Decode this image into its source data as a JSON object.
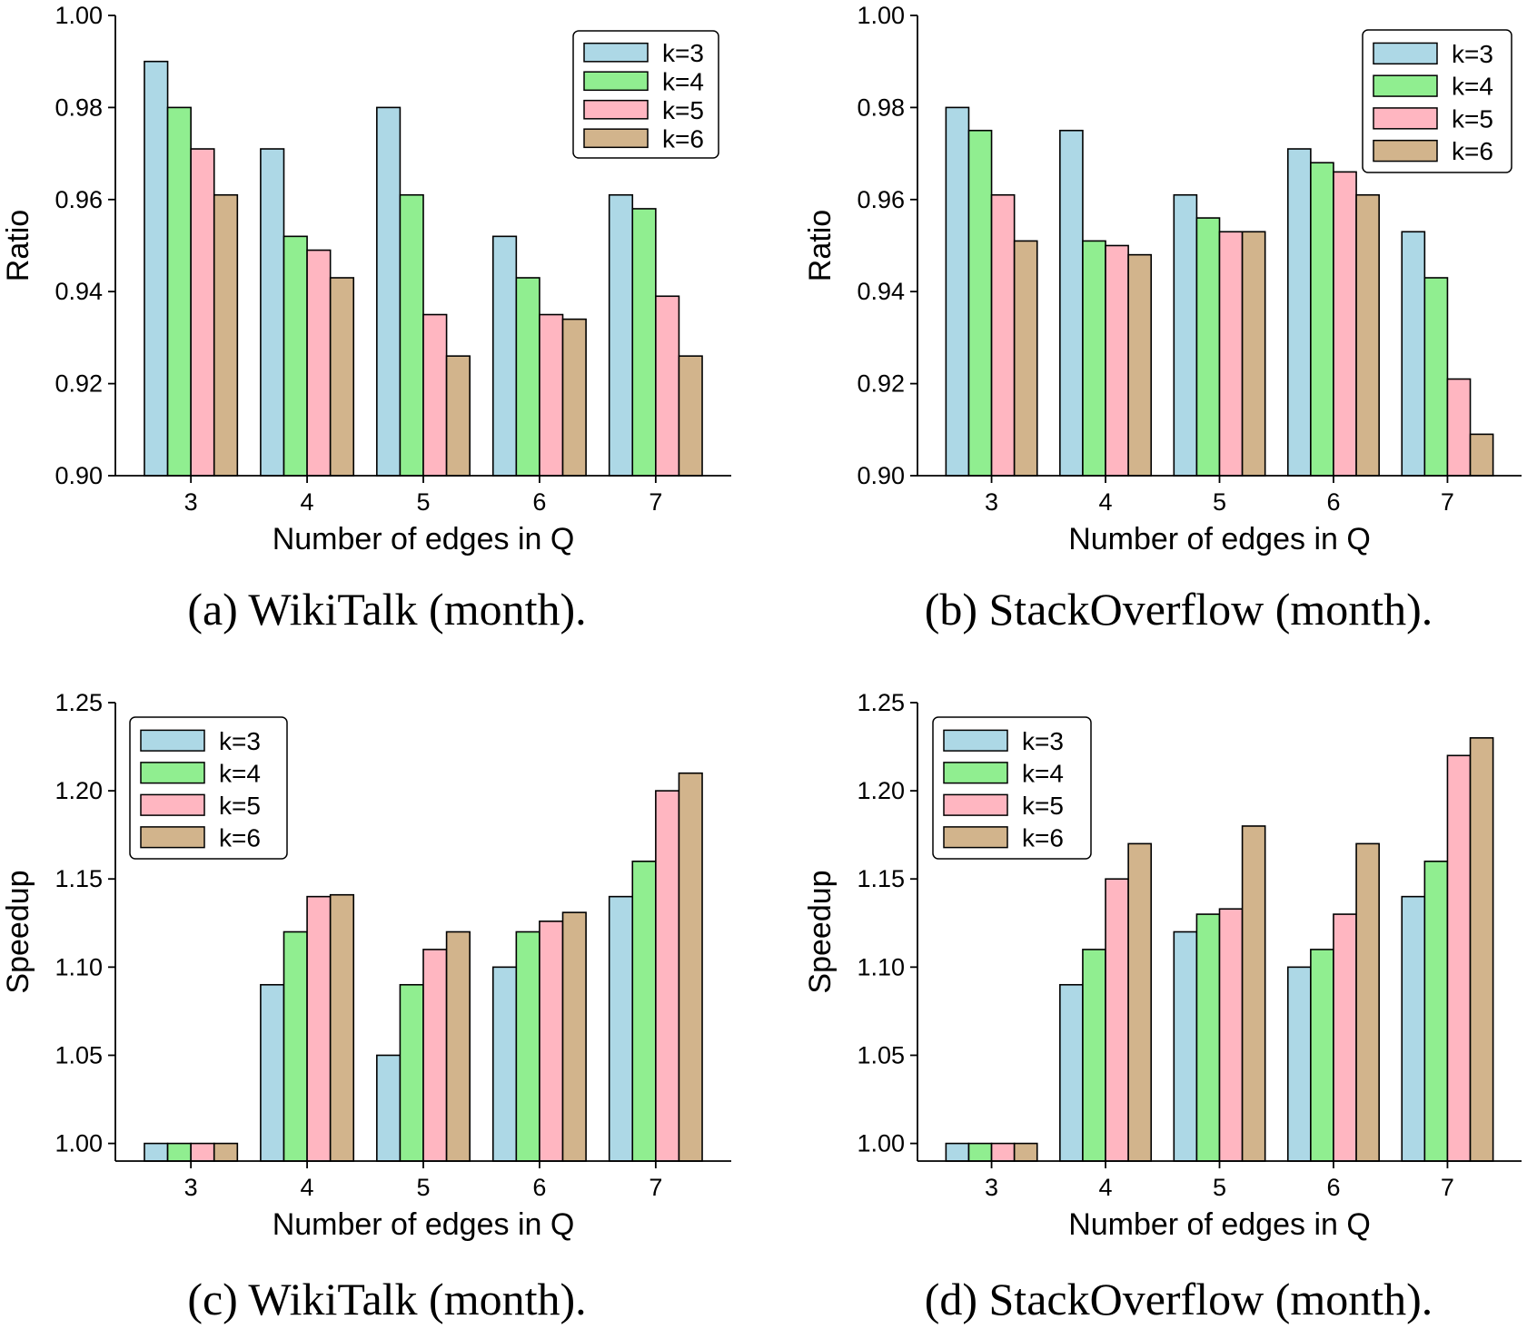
{
  "chart_data": [
    {
      "type": "bar",
      "caption": "(a) WikiTalk (month).",
      "xlabel": "Number of edges in Q",
      "ylabel": "Ratio",
      "categories": [
        "3",
        "4",
        "5",
        "6",
        "7"
      ],
      "ylim": [
        0.9,
        1.0
      ],
      "yticks": [
        "0.90",
        "0.92",
        "0.94",
        "0.96",
        "0.98",
        "1.00"
      ],
      "legend_position": "top-right",
      "grid": false,
      "series": [
        {
          "name": "k=3",
          "color": "#add8e6",
          "values": [
            0.99,
            0.971,
            0.98,
            0.952,
            0.961
          ]
        },
        {
          "name": "k=4",
          "color": "#90ee90",
          "values": [
            0.98,
            0.952,
            0.961,
            0.943,
            0.958
          ]
        },
        {
          "name": "k=5",
          "color": "#ffb6c1",
          "values": [
            0.971,
            0.949,
            0.935,
            0.935,
            0.939
          ]
        },
        {
          "name": "k=6",
          "color": "#d2b48c",
          "values": [
            0.961,
            0.943,
            0.926,
            0.934,
            0.926
          ]
        }
      ]
    },
    {
      "type": "bar",
      "caption": "(b) StackOverflow (month).",
      "xlabel": "Number of edges in Q",
      "ylabel": "Ratio",
      "categories": [
        "3",
        "4",
        "5",
        "6",
        "7"
      ],
      "ylim": [
        0.9,
        1.0
      ],
      "yticks": [
        "0.90",
        "0.92",
        "0.94",
        "0.96",
        "0.98",
        "1.00"
      ],
      "legend_position": "top-right",
      "grid": false,
      "series": [
        {
          "name": "k=3",
          "color": "#add8e6",
          "values": [
            0.98,
            0.975,
            0.961,
            0.971,
            0.953
          ]
        },
        {
          "name": "k=4",
          "color": "#90ee90",
          "values": [
            0.975,
            0.951,
            0.956,
            0.968,
            0.943
          ]
        },
        {
          "name": "k=5",
          "color": "#ffb6c1",
          "values": [
            0.961,
            0.95,
            0.953,
            0.966,
            0.921
          ]
        },
        {
          "name": "k=6",
          "color": "#d2b48c",
          "values": [
            0.951,
            0.948,
            0.953,
            0.961,
            0.909
          ]
        }
      ]
    },
    {
      "type": "bar",
      "caption": "(c) WikiTalk (month).",
      "xlabel": "Number of edges in Q",
      "ylabel": "Speedup",
      "categories": [
        "3",
        "4",
        "5",
        "6",
        "7"
      ],
      "ylim": [
        0.99,
        1.25
      ],
      "yticks": [
        "1.00",
        "1.05",
        "1.10",
        "1.15",
        "1.20",
        "1.25"
      ],
      "legend_position": "top-left",
      "grid": false,
      "series": [
        {
          "name": "k=3",
          "color": "#add8e6",
          "values": [
            1.0,
            1.09,
            1.05,
            1.1,
            1.14
          ]
        },
        {
          "name": "k=4",
          "color": "#90ee90",
          "values": [
            1.0,
            1.12,
            1.09,
            1.12,
            1.16
          ]
        },
        {
          "name": "k=5",
          "color": "#ffb6c1",
          "values": [
            1.0,
            1.14,
            1.11,
            1.126,
            1.2
          ]
        },
        {
          "name": "k=6",
          "color": "#d2b48c",
          "values": [
            1.0,
            1.141,
            1.12,
            1.131,
            1.21
          ]
        }
      ]
    },
    {
      "type": "bar",
      "caption": "(d) StackOverflow (month).",
      "xlabel": "Number of edges in Q",
      "ylabel": "Speedup",
      "categories": [
        "3",
        "4",
        "5",
        "6",
        "7"
      ],
      "ylim": [
        0.99,
        1.25
      ],
      "yticks": [
        "1.00",
        "1.05",
        "1.10",
        "1.15",
        "1.20",
        "1.25"
      ],
      "legend_position": "top-left",
      "grid": false,
      "series": [
        {
          "name": "k=3",
          "color": "#add8e6",
          "values": [
            1.0,
            1.09,
            1.12,
            1.1,
            1.14
          ]
        },
        {
          "name": "k=4",
          "color": "#90ee90",
          "values": [
            1.0,
            1.11,
            1.13,
            1.11,
            1.16
          ]
        },
        {
          "name": "k=5",
          "color": "#ffb6c1",
          "values": [
            1.0,
            1.15,
            1.133,
            1.13,
            1.22
          ]
        },
        {
          "name": "k=6",
          "color": "#d2b48c",
          "values": [
            1.0,
            1.17,
            1.18,
            1.17,
            1.23
          ]
        }
      ]
    }
  ]
}
